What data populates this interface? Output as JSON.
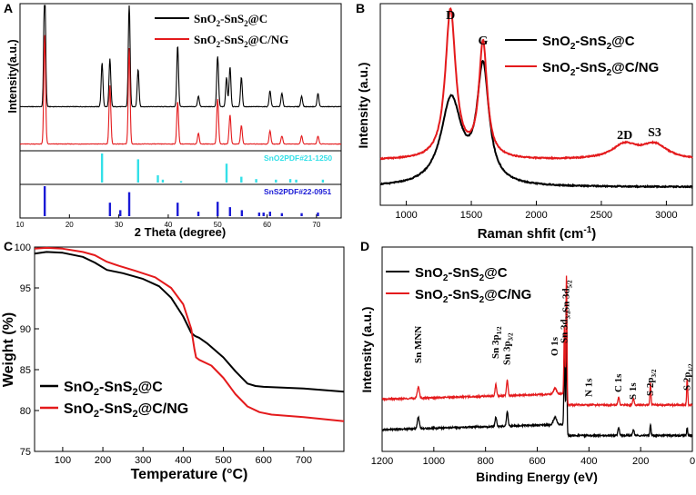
{
  "figure_panels": [
    "A",
    "B",
    "C",
    "D"
  ],
  "colors": {
    "black": "#000000",
    "red": "#e41a1c",
    "cyan": "#33e0e8",
    "blue": "#1a1ad6"
  },
  "chart_data": [
    {
      "panel": "A",
      "type": "line",
      "xlabel": "2 Theta (degree)",
      "ylabel": "Intensity(a.u.)",
      "xlim": [
        10,
        75
      ],
      "xticks": [
        10,
        20,
        30,
        40,
        50,
        60,
        70
      ],
      "legend": [
        "SnO2-SnS2@C",
        "SnO2-SnS2@C/NG"
      ],
      "legend_display": [
        {
          "main": "SnO",
          "sub1": "2",
          "mid": "-SnS",
          "sub2": "2",
          "tail": "@C"
        },
        {
          "main": "SnO",
          "sub1": "2",
          "mid": "-SnS",
          "sub2": "2",
          "tail": "@C/NG"
        }
      ],
      "series": [
        {
          "name": "SnO2-SnS2@C",
          "color": "#000000",
          "baseline": 0.28,
          "peaks": [
            [
              15.0,
              1.0
            ],
            [
              26.6,
              0.33
            ],
            [
              28.2,
              0.36
            ],
            [
              32.1,
              0.78
            ],
            [
              33.9,
              0.28
            ],
            [
              41.9,
              0.46
            ],
            [
              46.1,
              0.08
            ],
            [
              50.0,
              0.38
            ],
            [
              51.8,
              0.22
            ],
            [
              52.5,
              0.3
            ],
            [
              54.8,
              0.22
            ],
            [
              60.6,
              0.12
            ],
            [
              63.0,
              0.1
            ],
            [
              67.0,
              0.08
            ],
            [
              70.3,
              0.1
            ]
          ]
        },
        {
          "name": "SnO2-SnS2@C/NG",
          "color": "#e41a1c",
          "baseline": 0.0,
          "peaks": [
            [
              15.0,
              0.82
            ],
            [
              28.2,
              0.44
            ],
            [
              32.1,
              0.72
            ],
            [
              41.9,
              0.32
            ],
            [
              46.1,
              0.08
            ],
            [
              50.0,
              0.34
            ],
            [
              52.5,
              0.22
            ],
            [
              54.8,
              0.14
            ],
            [
              60.6,
              0.1
            ],
            [
              63.0,
              0.06
            ],
            [
              67.0,
              0.06
            ],
            [
              70.3,
              0.06
            ]
          ]
        }
      ],
      "references": [
        {
          "name": "SnO2 PDF#21-1250",
          "label": "SnO2PDF#21-1250",
          "color": "#33e0e8",
          "sticks": [
            [
              26.6,
              1.0
            ],
            [
              33.9,
              0.8
            ],
            [
              37.9,
              0.25
            ],
            [
              38.9,
              0.1
            ],
            [
              42.6,
              0.05
            ],
            [
              51.8,
              0.65
            ],
            [
              54.8,
              0.2
            ],
            [
              57.8,
              0.12
            ],
            [
              61.8,
              0.1
            ],
            [
              64.7,
              0.12
            ],
            [
              65.9,
              0.1
            ],
            [
              71.3,
              0.1
            ]
          ]
        },
        {
          "name": "SnS2 PDF#22-0951",
          "label": "SnS2PDF#22-0951",
          "color": "#1a1ad6",
          "sticks": [
            [
              15.0,
              1.0
            ],
            [
              28.2,
              0.45
            ],
            [
              30.3,
              0.2
            ],
            [
              32.1,
              0.8
            ],
            [
              41.9,
              0.45
            ],
            [
              46.1,
              0.15
            ],
            [
              50.0,
              0.48
            ],
            [
              52.5,
              0.3
            ],
            [
              54.9,
              0.2
            ],
            [
              58.4,
              0.12
            ],
            [
              59.3,
              0.12
            ],
            [
              60.6,
              0.15
            ],
            [
              63.0,
              0.1
            ],
            [
              67.0,
              0.1
            ],
            [
              70.3,
              0.12
            ]
          ]
        }
      ]
    },
    {
      "panel": "B",
      "type": "line",
      "xlabel": "Raman shfit (cm",
      "xlabel_sup": "-1",
      "xlabel_tail": ")",
      "ylabel": "Intensity (a.u.)",
      "xlim": [
        800,
        3200
      ],
      "xticks": [
        1000,
        1500,
        2000,
        2500,
        3000
      ],
      "annotations": [
        {
          "text": "D",
          "x": 1340
        },
        {
          "text": "G",
          "x": 1590
        },
        {
          "text": "2D",
          "x": 2680
        },
        {
          "text": "S3",
          "x": 2910
        }
      ],
      "legend": [
        "SnO2-SnS2@C",
        "SnO2-SnS2@C/NG"
      ],
      "legend_display": [
        {
          "main": "SnO",
          "sub1": "2",
          "mid": "-SnS",
          "sub2": "2",
          "tail": "@C"
        },
        {
          "main": "SnO",
          "sub1": "2",
          "mid": "-SnS",
          "sub2": "2",
          "tail": "@C/NG"
        }
      ],
      "series": [
        {
          "name": "SnO2-SnS2@C",
          "color": "#000000",
          "baseline": 0.02,
          "bands": [
            [
              1345,
              0.48,
              95
            ],
            [
              1590,
              0.64,
              55
            ]
          ]
        },
        {
          "name": "SnO2-SnS2@C/NG",
          "color": "#e41a1c",
          "baseline": 0.17,
          "bands": [
            [
              1340,
              0.83,
              48
            ],
            [
              1590,
              0.64,
              38
            ],
            [
              2680,
              0.08,
              120
            ],
            [
              2910,
              0.08,
              120
            ]
          ]
        }
      ]
    },
    {
      "panel": "C",
      "type": "line",
      "xlabel": "Temperature (°C)",
      "ylabel": "Weight (%)",
      "xlim": [
        30,
        800
      ],
      "ylim": [
        75,
        100
      ],
      "xticks": [
        100,
        200,
        300,
        400,
        500,
        600,
        700
      ],
      "yticks": [
        75,
        80,
        85,
        90,
        95,
        100
      ],
      "legend": [
        "SnO2-SnS2@C",
        "SnO2-SnS2@C/NG"
      ],
      "legend_display": [
        {
          "main": "SnO",
          "sub1": "2",
          "mid": "-SnS",
          "sub2": "2",
          "tail": "@C"
        },
        {
          "main": "SnO",
          "sub1": "2",
          "mid": "-SnS",
          "sub2": "2",
          "tail": "@C/NG"
        }
      ],
      "series": [
        {
          "name": "SnO2-SnS2@C",
          "color": "#000000",
          "x": [
            30,
            60,
            100,
            150,
            180,
            210,
            250,
            300,
            340,
            370,
            400,
            420,
            430,
            440,
            460,
            500,
            530,
            560,
            580,
            600,
            700,
            800
          ],
          "y": [
            99.2,
            99.4,
            99.3,
            98.8,
            98.1,
            97.2,
            96.8,
            96.1,
            95.2,
            93.8,
            91.5,
            89.5,
            89.1,
            88.9,
            88.2,
            86.5,
            84.8,
            83.3,
            83.0,
            82.9,
            82.7,
            82.3
          ]
        },
        {
          "name": "SnO2-SnS2@C/NG",
          "color": "#e41a1c",
          "x": [
            30,
            60,
            100,
            150,
            180,
            210,
            240,
            280,
            330,
            370,
            400,
            420,
            428,
            432,
            440,
            470,
            500,
            530,
            560,
            590,
            620,
            700,
            800
          ],
          "y": [
            99.8,
            99.9,
            99.8,
            99.4,
            99.0,
            98.2,
            97.7,
            97.1,
            96.3,
            95.0,
            93.0,
            90.0,
            87.5,
            86.5,
            86.2,
            85.5,
            84.0,
            82.0,
            80.5,
            79.8,
            79.5,
            79.2,
            78.7
          ]
        }
      ]
    },
    {
      "panel": "D",
      "type": "line",
      "xlabel": "Binding Energy (eV)",
      "ylabel": "Intensity (a.u.)",
      "xlim": [
        1200,
        0
      ],
      "xticks": [
        1200,
        1000,
        800,
        600,
        400,
        200,
        0
      ],
      "legend": [
        "SnO2-SnS2@C",
        "SnO2-SnS2@C/NG"
      ],
      "legend_display": [
        {
          "main": "SnO",
          "sub1": "2",
          "mid": "-SnS",
          "sub2": "2",
          "tail": "@C"
        },
        {
          "main": "SnO",
          "sub1": "2",
          "mid": "-SnS",
          "sub2": "2",
          "tail": "@C/NG"
        }
      ],
      "annotations": [
        {
          "text": "Sn MNN",
          "x": 1060
        },
        {
          "text": "Sn 3p1/2",
          "x": 760,
          "base": "Sn 3p",
          "sub": "1/2"
        },
        {
          "text": "Sn 3p3/2",
          "x": 716,
          "base": "Sn 3p",
          "sub": "3/2"
        },
        {
          "text": "O 1s",
          "x": 531
        },
        {
          "text": "Sn 3d3/2",
          "x": 495,
          "base": "Sn 3d",
          "sub": "3/2"
        },
        {
          "text": "Sn 3d5/2",
          "x": 487,
          "base": "Sn 3d",
          "sub": "5/2"
        },
        {
          "text": "N 1s",
          "x": 400
        },
        {
          "text": "C 1s",
          "x": 285
        },
        {
          "text": "S 1s",
          "x": 228
        },
        {
          "text": "S 2p3/2",
          "x": 162,
          "base": "S 2p",
          "sub": "3/2"
        },
        {
          "text": "S 2p1/2",
          "x": 20,
          "base": "S 2p",
          "sub": "1/2"
        }
      ],
      "series": [
        {
          "name": "SnO2-SnS2@C",
          "color": "#000000",
          "baseline": 0.07,
          "peaks": [
            [
              1060,
              0.06,
              4
            ],
            [
              760,
              0.05,
              3
            ],
            [
              716,
              0.08,
              3
            ],
            [
              531,
              0.04,
              6
            ],
            [
              495,
              0.38,
              2
            ],
            [
              487,
              0.52,
              2
            ],
            [
              285,
              0.04,
              3
            ],
            [
              228,
              0.03,
              3
            ],
            [
              162,
              0.06,
              2
            ],
            [
              20,
              0.04,
              2
            ]
          ]
        },
        {
          "name": "SnO2-SnS2@C/NG",
          "color": "#e41a1c",
          "baseline": 0.23,
          "peaks": [
            [
              1060,
              0.06,
              4
            ],
            [
              760,
              0.06,
              3
            ],
            [
              716,
              0.08,
              3
            ],
            [
              531,
              0.03,
              6
            ],
            [
              495,
              0.35,
              2
            ],
            [
              487,
              0.68,
              2
            ],
            [
              285,
              0.04,
              3
            ],
            [
              228,
              0.03,
              3
            ],
            [
              162,
              0.12,
              2
            ],
            [
              20,
              0.14,
              2
            ]
          ]
        }
      ]
    }
  ]
}
